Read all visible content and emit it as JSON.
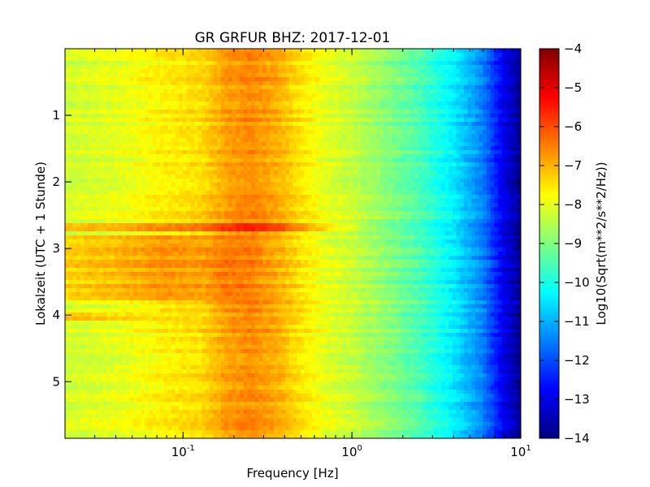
{
  "chart_data": {
    "type": "heatmap",
    "title": "GR GRFUR BHZ: 2017-12-01",
    "xlabel": "Frequency [Hz]",
    "ylabel": "Lokalzeit (UTC + 1 Stunde)",
    "x_scale": "log",
    "xlim": [
      0.02,
      10
    ],
    "ylim": [
      5.85,
      0
    ],
    "x_ticks": [
      {
        "value": 0.1,
        "base": "10",
        "exp": "-1"
      },
      {
        "value": 1,
        "base": "10",
        "exp": "0"
      },
      {
        "value": 10,
        "base": "10",
        "exp": "1"
      }
    ],
    "y_ticks": [
      {
        "value": 1,
        "label": "1"
      },
      {
        "value": 2,
        "label": "2"
      },
      {
        "value": 3,
        "label": "3"
      },
      {
        "value": 4,
        "label": "4"
      },
      {
        "value": 5,
        "label": "5"
      }
    ],
    "colorbar": {
      "label": "Log10(Sqrt(m**2/s**2/Hz))",
      "range": [
        -14,
        -4
      ],
      "colormap": "jet",
      "ticks": [
        {
          "value": -4,
          "label": "−4"
        },
        {
          "value": -5,
          "label": "−5"
        },
        {
          "value": -6,
          "label": "−6"
        },
        {
          "value": -7,
          "label": "−7"
        },
        {
          "value": -8,
          "label": "−8"
        },
        {
          "value": -9,
          "label": "−9"
        },
        {
          "value": -10,
          "label": "−10"
        },
        {
          "value": -11,
          "label": "−11"
        },
        {
          "value": -12,
          "label": "−12"
        },
        {
          "value": -13,
          "label": "−13"
        },
        {
          "value": -14,
          "label": "−14"
        }
      ]
    },
    "freq_profile": {
      "freq": [
        0.02,
        0.04,
        0.08,
        0.13,
        0.18,
        0.25,
        0.35,
        0.5,
        0.7,
        1.0,
        1.5,
        2.5,
        4.0,
        6.0,
        8.0,
        10.0
      ],
      "psd": [
        -8.2,
        -8.0,
        -7.6,
        -7.4,
        -6.8,
        -6.6,
        -6.9,
        -7.5,
        -8.0,
        -8.3,
        -8.8,
        -9.5,
        -10.4,
        -11.5,
        -13.0,
        -13.8
      ]
    },
    "events": [
      {
        "time": 2.7,
        "freq_max": 1.5,
        "psd_offset": 1.2
      },
      {
        "time_start": 2.8,
        "time_end": 3.8,
        "freq_max": 0.3,
        "psd_offset": 0.9
      },
      {
        "time": 4.0,
        "freq_max": 0.1,
        "psd_offset": 1.0
      }
    ]
  }
}
